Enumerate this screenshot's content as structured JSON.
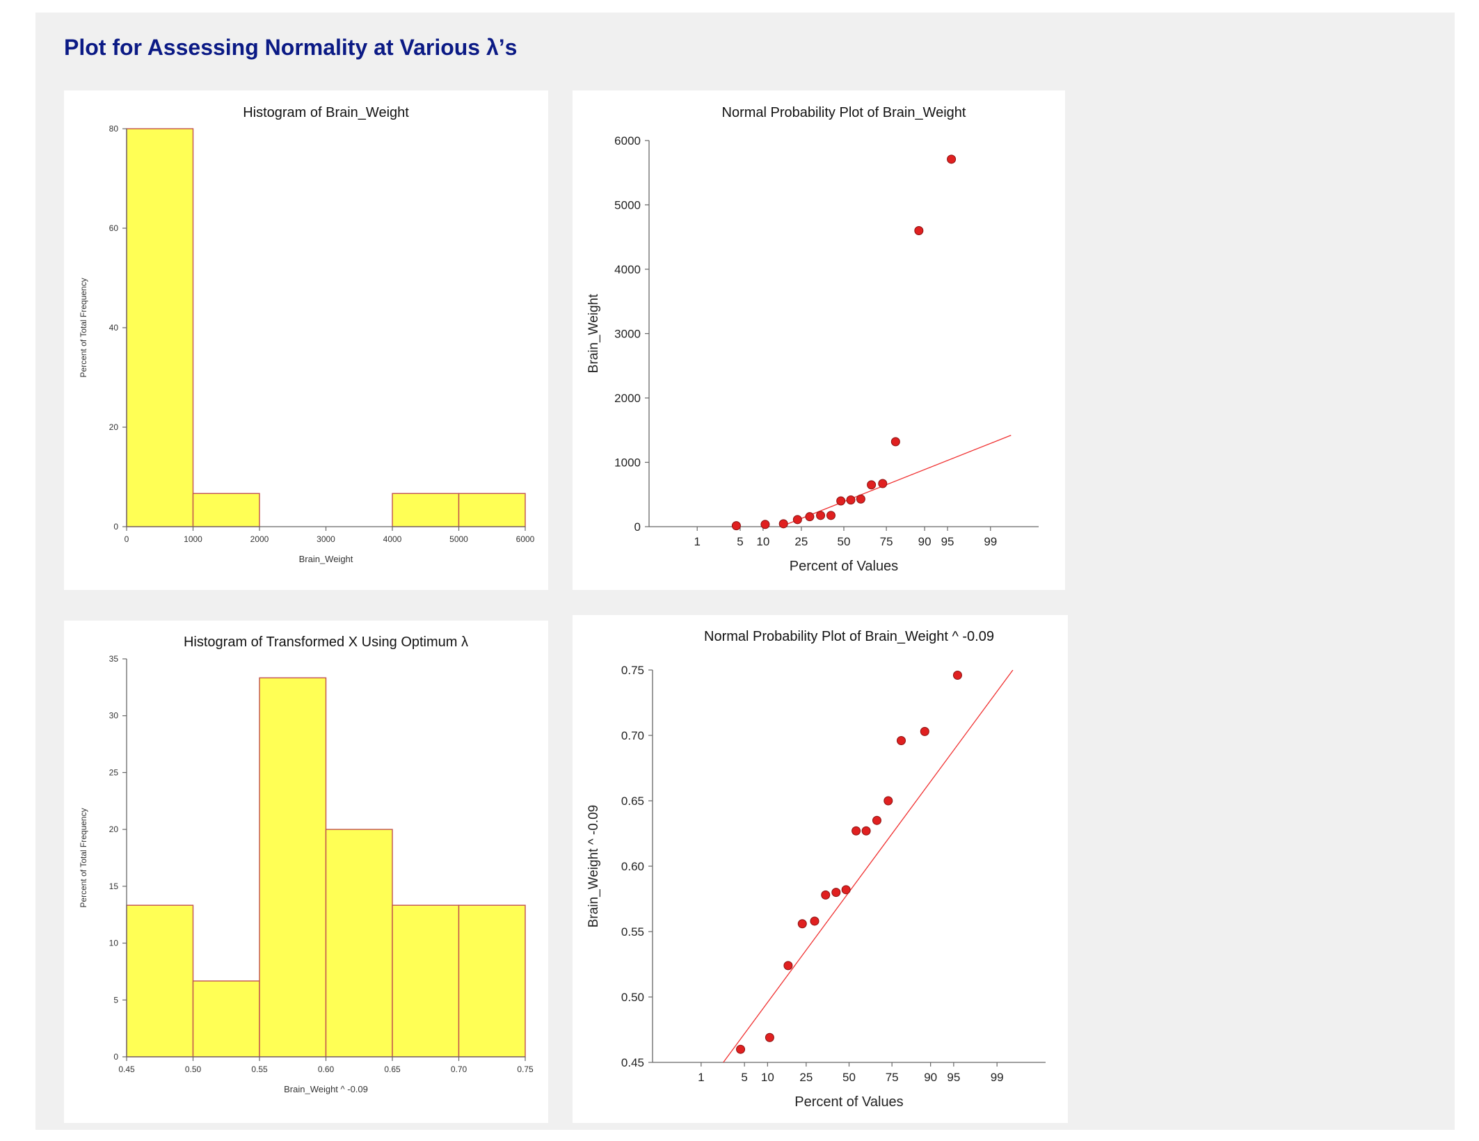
{
  "report": {
    "title": "Plot for Assessing Normality at Various λ’s"
  },
  "colors": {
    "bar_fill": "#ffff55",
    "bar_stroke": "#c0504d",
    "point": "#e02020",
    "line": "#f03030",
    "title_blue": "#0b1a85",
    "axis": "#666666",
    "panel_bg": "#f0f0f0"
  },
  "chart_data": [
    {
      "id": "hist1",
      "type": "bar",
      "title": "Histogram of Brain_Weight",
      "xlabel": "Brain_Weight",
      "ylabel": "Percent of Total Frequency",
      "xlim": [
        0,
        6000
      ],
      "ylim": [
        0,
        80
      ],
      "xticks": [
        0,
        1000,
        2000,
        3000,
        4000,
        5000,
        6000
      ],
      "xtick_labels": [
        "0",
        "1000",
        "2000",
        "3000",
        "4000",
        "5000",
        "6000"
      ],
      "yticks": [
        0,
        20,
        40,
        60,
        80
      ],
      "ytick_labels": [
        "0",
        "20",
        "40",
        "60",
        "80"
      ],
      "bin_edges": [
        0,
        1000,
        2000,
        3000,
        4000,
        5000,
        6000
      ],
      "values": [
        80,
        6.67,
        0,
        0,
        6.67,
        6.67
      ]
    },
    {
      "id": "npp1",
      "type": "scatter",
      "title": "Normal Probability Plot of Brain_Weight",
      "xlabel": "Percent of Values",
      "ylabel": "Brain_Weight",
      "x_scale": "normal-probability",
      "xlim": [
        0.1,
        99.9
      ],
      "ylim": [
        0,
        6000
      ],
      "xticks": [
        1,
        5,
        10,
        25,
        50,
        75,
        90,
        95,
        99
      ],
      "xtick_labels": [
        "1",
        "5",
        "10",
        "25",
        "50",
        "75",
        "90",
        "95",
        "99"
      ],
      "yticks": [
        0,
        1000,
        2000,
        3000,
        4000,
        5000,
        6000
      ],
      "ytick_labels": [
        "0",
        "1000",
        "2000",
        "3000",
        "4000",
        "5000",
        "6000"
      ],
      "points": [
        {
          "x": 4.4,
          "y": 15
        },
        {
          "x": 10.6,
          "y": 35
        },
        {
          "x": 16.9,
          "y": 45
        },
        {
          "x": 23.1,
          "y": 110
        },
        {
          "x": 29.4,
          "y": 155
        },
        {
          "x": 35.6,
          "y": 175
        },
        {
          "x": 41.9,
          "y": 175
        },
        {
          "x": 48.1,
          "y": 400
        },
        {
          "x": 54.4,
          "y": 415
        },
        {
          "x": 60.6,
          "y": 430
        },
        {
          "x": 66.9,
          "y": 650
        },
        {
          "x": 73.1,
          "y": 670
        },
        {
          "x": 79.4,
          "y": 1320
        },
        {
          "x": 88.3,
          "y": 4600
        },
        {
          "x": 95.6,
          "y": 5710
        }
      ],
      "fit_line": [
        {
          "x": 3.8,
          "y": -300
        },
        {
          "x": 99.6,
          "y": 1420
        }
      ]
    },
    {
      "id": "hist2",
      "type": "bar",
      "title": "Histogram of Transformed X Using Optimum λ",
      "xlabel": "Brain_Weight ^ -0.09",
      "ylabel": "Percent of Total Frequency",
      "xlim": [
        0.45,
        0.75
      ],
      "ylim": [
        0,
        35
      ],
      "xticks": [
        0.45,
        0.5,
        0.55,
        0.6,
        0.65,
        0.7,
        0.75
      ],
      "xtick_labels": [
        "0.45",
        "0.50",
        "0.55",
        "0.60",
        "0.65",
        "0.70",
        "0.75"
      ],
      "yticks": [
        0,
        5,
        10,
        15,
        20,
        25,
        30,
        35
      ],
      "ytick_labels": [
        "0",
        "5",
        "10",
        "15",
        "20",
        "25",
        "30",
        "35"
      ],
      "bin_edges": [
        0.45,
        0.5,
        0.55,
        0.6,
        0.65,
        0.7,
        0.75
      ],
      "values": [
        13.33,
        6.67,
        33.33,
        20,
        13.33,
        13.33
      ]
    },
    {
      "id": "npp2",
      "type": "scatter",
      "title": "Normal Probability Plot of Brain_Weight ^ -0.09",
      "xlabel": "Percent of Values",
      "ylabel": "Brain_Weight ^ -0.09",
      "x_scale": "normal-probability",
      "xlim": [
        0.1,
        99.9
      ],
      "ylim": [
        0.45,
        0.75
      ],
      "xticks": [
        1,
        5,
        10,
        25,
        50,
        75,
        90,
        95,
        99
      ],
      "xtick_labels": [
        "1",
        "5",
        "10",
        "25",
        "50",
        "75",
        "90",
        "95",
        "99"
      ],
      "yticks": [
        0.45,
        0.5,
        0.55,
        0.6,
        0.65,
        0.7,
        0.75
      ],
      "ytick_labels": [
        "0.45",
        "0.50",
        "0.55",
        "0.60",
        "0.65",
        "0.70",
        "0.75"
      ],
      "points": [
        {
          "x": 4.4,
          "y": 0.46
        },
        {
          "x": 10.6,
          "y": 0.469
        },
        {
          "x": 16.9,
          "y": 0.524
        },
        {
          "x": 23.1,
          "y": 0.556
        },
        {
          "x": 29.4,
          "y": 0.558
        },
        {
          "x": 35.6,
          "y": 0.578
        },
        {
          "x": 41.9,
          "y": 0.58
        },
        {
          "x": 48.1,
          "y": 0.582
        },
        {
          "x": 54.4,
          "y": 0.627
        },
        {
          "x": 60.6,
          "y": 0.627
        },
        {
          "x": 66.9,
          "y": 0.635
        },
        {
          "x": 73.1,
          "y": 0.65
        },
        {
          "x": 79.4,
          "y": 0.696
        },
        {
          "x": 88.3,
          "y": 0.703
        },
        {
          "x": 95.6,
          "y": 0.746
        }
      ],
      "fit_line": [
        {
          "x": 2.4,
          "y": 0.45
        },
        {
          "x": 99.5,
          "y": 0.75
        }
      ]
    }
  ]
}
